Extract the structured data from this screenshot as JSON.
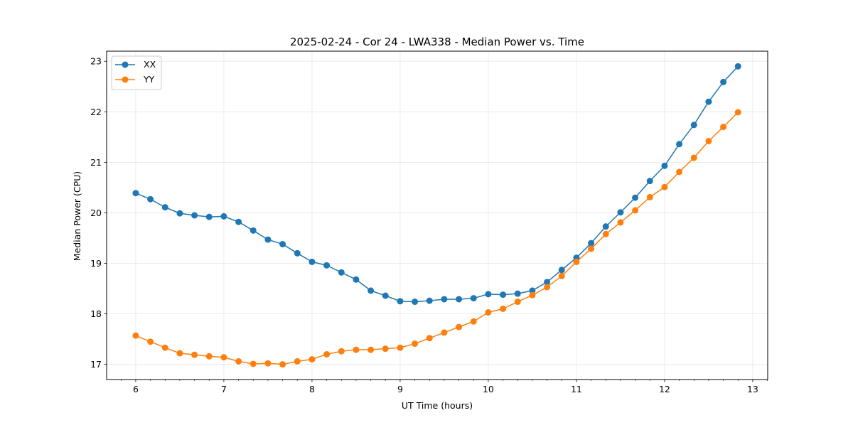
{
  "chart_data": {
    "type": "line",
    "title": "2025-02-24 - Cor 24 - LWA338 - Median Power vs. Time",
    "xlabel": "UT Time (hours)",
    "ylabel": "Median Power (CPU)",
    "xlim": [
      5.67,
      13.17
    ],
    "ylim": [
      16.7,
      23.2
    ],
    "xticks": [
      6,
      7,
      8,
      9,
      10,
      11,
      12,
      13
    ],
    "xtick_labels": [
      "6",
      "7",
      "8",
      "9",
      "10",
      "11",
      "12",
      "13"
    ],
    "yticks": [
      17,
      18,
      19,
      20,
      21,
      22,
      23
    ],
    "ytick_labels": [
      "17",
      "18",
      "19",
      "20",
      "21",
      "22",
      "23"
    ],
    "grid": true,
    "legend_position": "top-left",
    "x": [
      6.0,
      6.1667,
      6.3333,
      6.5,
      6.6667,
      6.8333,
      7.0,
      7.1667,
      7.3333,
      7.5,
      7.6667,
      7.8333,
      8.0,
      8.1667,
      8.3333,
      8.5,
      8.6667,
      8.8333,
      9.0,
      9.1667,
      9.3333,
      9.5,
      9.6667,
      9.8333,
      10.0,
      10.1667,
      10.3333,
      10.5,
      10.6667,
      10.8333,
      11.0,
      11.1667,
      11.3333,
      11.5,
      11.6667,
      11.8333,
      12.0,
      12.1667,
      12.3333,
      12.5,
      12.6667,
      12.8333
    ],
    "series": [
      {
        "name": "XX",
        "color": "#1f77b4",
        "values": [
          20.39,
          20.27,
          20.11,
          19.99,
          19.95,
          19.92,
          19.93,
          19.82,
          19.65,
          19.47,
          19.38,
          19.2,
          19.03,
          18.96,
          18.82,
          18.68,
          18.46,
          18.36,
          18.25,
          18.24,
          18.26,
          18.29,
          18.29,
          18.31,
          18.39,
          18.38,
          18.4,
          18.46,
          18.63,
          18.87,
          19.11,
          19.4,
          19.73,
          20.01,
          20.3,
          20.63,
          20.93,
          21.36,
          21.74,
          22.2,
          22.59,
          22.9
        ]
      },
      {
        "name": "YY",
        "color": "#ff7f0e",
        "values": [
          17.57,
          17.45,
          17.33,
          17.22,
          17.19,
          17.16,
          17.14,
          17.06,
          17.01,
          17.02,
          17.0,
          17.06,
          17.1,
          17.2,
          17.26,
          17.29,
          17.29,
          17.31,
          17.33,
          17.41,
          17.52,
          17.63,
          17.74,
          17.85,
          18.03,
          18.1,
          18.24,
          18.37,
          18.53,
          18.75,
          19.03,
          19.29,
          19.58,
          19.81,
          20.05,
          20.31,
          20.51,
          20.81,
          21.09,
          21.42,
          21.7,
          21.99
        ]
      }
    ]
  }
}
